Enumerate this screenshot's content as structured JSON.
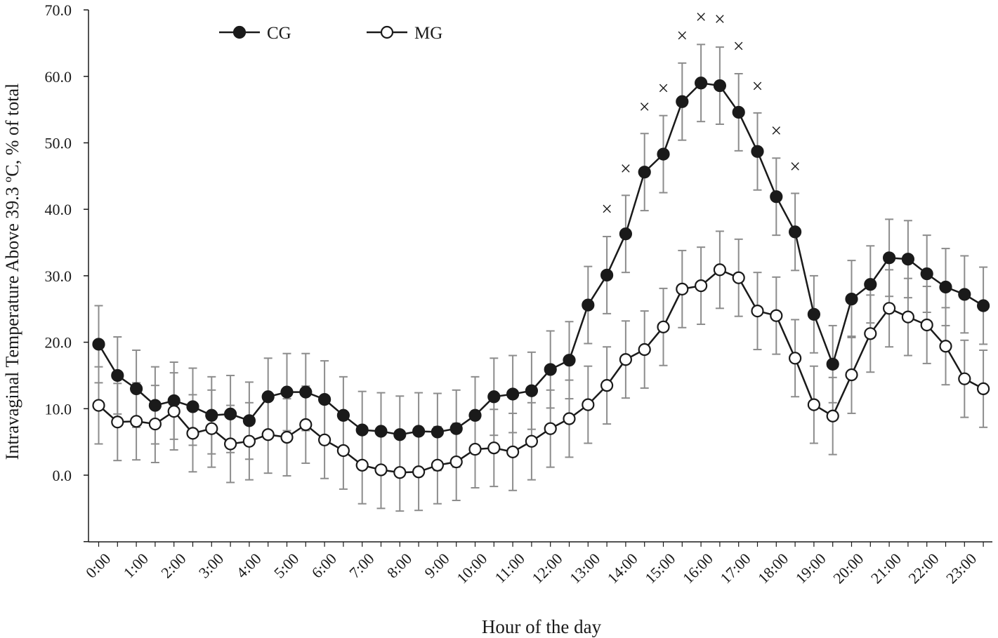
{
  "chart_data": {
    "type": "line",
    "title": "",
    "xlabel": "Hour of the day",
    "ylabel": "Intravaginal Temperature Above 39.3 ºC, % of total",
    "ylim": [
      -10,
      70
    ],
    "y_tick_labels": [
      "0.0",
      "10.0",
      "20.0",
      "30.0",
      "40.0",
      "50.0",
      "60.0",
      "70.0"
    ],
    "x_tick_labels": [
      "0:00",
      "1:00",
      "2:00",
      "3:00",
      "4:00",
      "5:00",
      "6:00",
      "7:00",
      "8:00",
      "9:00",
      "10:00",
      "11:00",
      "12:00",
      "13:00",
      "14:00",
      "15:00",
      "16:00",
      "17:00",
      "18:00",
      "19:00",
      "20:00",
      "21:00",
      "22:00",
      "23:00"
    ],
    "x": [
      "0:00",
      "0:30",
      "1:00",
      "1:30",
      "2:00",
      "2:30",
      "3:00",
      "3:30",
      "4:00",
      "4:30",
      "5:00",
      "5:30",
      "6:00",
      "6:30",
      "7:00",
      "7:30",
      "8:00",
      "8:30",
      "9:00",
      "9:30",
      "10:00",
      "10:30",
      "11:00",
      "11:30",
      "12:00",
      "12:30",
      "13:00",
      "13:30",
      "14:00",
      "14:30",
      "15:00",
      "15:30",
      "16:00",
      "16:30",
      "17:00",
      "17:30",
      "18:00",
      "18:30",
      "19:00",
      "19:30",
      "20:00",
      "20:30",
      "21:00",
      "21:30",
      "22:00",
      "22:30",
      "23:00",
      "23:30"
    ],
    "grid": false,
    "legend_position": "top-left",
    "series": [
      {
        "name": "CG",
        "marker": "filled-circle",
        "color": "#1a1a1a",
        "values": [
          19.7,
          15.0,
          13.0,
          10.5,
          11.2,
          10.3,
          9.0,
          9.2,
          8.2,
          11.8,
          12.5,
          12.5,
          11.4,
          9.0,
          6.8,
          6.6,
          6.1,
          6.6,
          6.5,
          7.0,
          9.0,
          11.8,
          12.2,
          12.7,
          15.9,
          17.3,
          25.6,
          30.1,
          36.3,
          45.6,
          48.3,
          56.2,
          59.0,
          58.6,
          54.6,
          48.7,
          41.9,
          36.6,
          24.2,
          16.7,
          26.5,
          28.7,
          32.7,
          32.5,
          30.3,
          28.3,
          27.2,
          25.5
        ],
        "error": [
          5.8,
          5.8,
          5.8,
          5.8,
          5.8,
          5.8,
          5.8,
          5.8,
          5.8,
          5.8,
          5.8,
          5.8,
          5.8,
          5.8,
          5.8,
          5.8,
          5.8,
          5.8,
          5.8,
          5.8,
          5.8,
          5.8,
          5.8,
          5.8,
          5.8,
          5.8,
          5.8,
          5.8,
          5.8,
          5.8,
          5.8,
          5.8,
          5.8,
          5.8,
          5.8,
          5.8,
          5.8,
          5.8,
          5.8,
          5.8,
          5.8,
          5.8,
          5.8,
          5.8,
          5.8,
          5.8,
          5.8,
          5.8
        ]
      },
      {
        "name": "MG",
        "marker": "open-circle",
        "color": "#1a1a1a",
        "values": [
          10.5,
          8.0,
          8.1,
          7.7,
          9.6,
          6.3,
          7.0,
          4.7,
          5.1,
          6.1,
          5.7,
          7.6,
          5.3,
          3.7,
          1.5,
          0.8,
          0.4,
          0.5,
          1.5,
          2.0,
          3.9,
          4.1,
          3.5,
          5.1,
          7.0,
          8.5,
          10.6,
          13.5,
          17.4,
          18.9,
          22.3,
          28.0,
          28.5,
          30.9,
          29.7,
          24.7,
          24.0,
          17.6,
          10.6,
          8.9,
          15.1,
          21.3,
          25.1,
          23.8,
          22.6,
          19.4,
          14.5,
          13.0
        ],
        "error": [
          5.8,
          5.8,
          5.8,
          5.8,
          5.8,
          5.8,
          5.8,
          5.8,
          5.8,
          5.8,
          5.8,
          5.8,
          5.8,
          5.8,
          5.8,
          5.8,
          5.8,
          5.8,
          5.8,
          5.8,
          5.8,
          5.8,
          5.8,
          5.8,
          5.8,
          5.8,
          5.8,
          5.8,
          5.8,
          5.8,
          5.8,
          5.8,
          5.8,
          5.8,
          5.8,
          5.8,
          5.8,
          5.8,
          5.8,
          5.8,
          5.8,
          5.8,
          5.8,
          5.8,
          5.8,
          5.8,
          5.8,
          5.8
        ]
      }
    ],
    "annotations": {
      "symbol": "×",
      "meaning_marker_positions": [
        {
          "x": "13:30",
          "y": 40.0
        },
        {
          "x": "14:00",
          "y": 46.1
        },
        {
          "x": "14:30",
          "y": 55.4
        },
        {
          "x": "15:00",
          "y": 58.2
        },
        {
          "x": "15:30",
          "y": 66.1
        },
        {
          "x": "16:00",
          "y": 68.9
        },
        {
          "x": "16:30",
          "y": 68.6
        },
        {
          "x": "17:00",
          "y": 64.5
        },
        {
          "x": "17:30",
          "y": 58.5
        },
        {
          "x": "18:00",
          "y": 51.8
        },
        {
          "x": "18:30",
          "y": 46.4
        }
      ]
    }
  }
}
